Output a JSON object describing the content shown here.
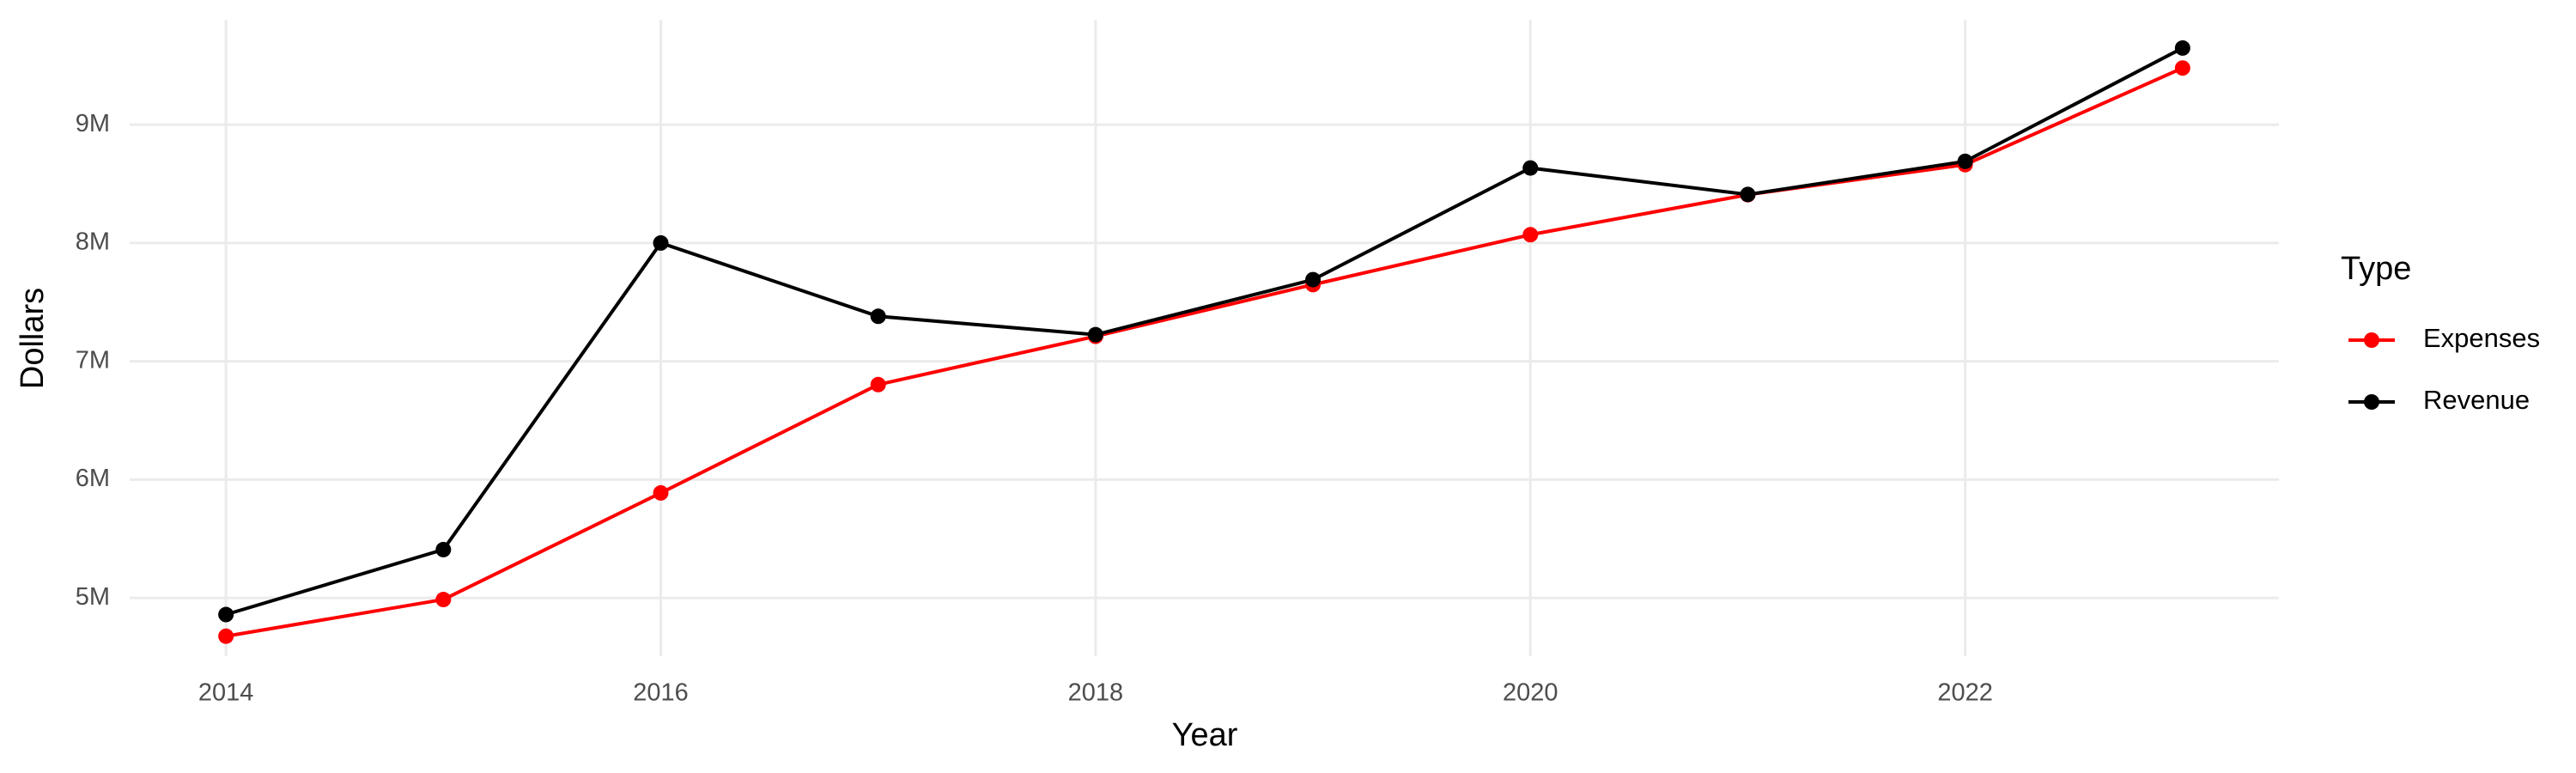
{
  "chart_data": {
    "type": "line",
    "x_label": "Year",
    "y_label": "Dollars",
    "x": [
      2014,
      2015,
      2016,
      2017,
      2018,
      2019,
      2020,
      2021,
      2022,
      2023
    ],
    "series": [
      {
        "name": "Expenses",
        "color": "#ff0000",
        "values": [
          4676000,
          4986000,
          5887000,
          6803000,
          7211000,
          7648000,
          8070000,
          8408000,
          8662000,
          9479000
        ]
      },
      {
        "name": "Revenue",
        "color": "#000000",
        "values": [
          4859000,
          5408000,
          8000000,
          7380000,
          7225000,
          7690000,
          8634000,
          8410000,
          8690000,
          9648000
        ]
      }
    ],
    "xlim": [
      2013.557,
      2023.443
    ],
    "xticks": [
      2014,
      2016,
      2018,
      2020,
      2022
    ],
    "ylim": [
      4507000,
      9887000
    ],
    "yticks": [
      {
        "value": 5000000,
        "label": "5M"
      },
      {
        "value": 6000000,
        "label": "6M"
      },
      {
        "value": 7000000,
        "label": "7M"
      },
      {
        "value": 8000000,
        "label": "8M"
      },
      {
        "value": 9000000,
        "label": "9M"
      }
    ],
    "grid": true,
    "legend_title": "Type",
    "legend_position": "right"
  }
}
